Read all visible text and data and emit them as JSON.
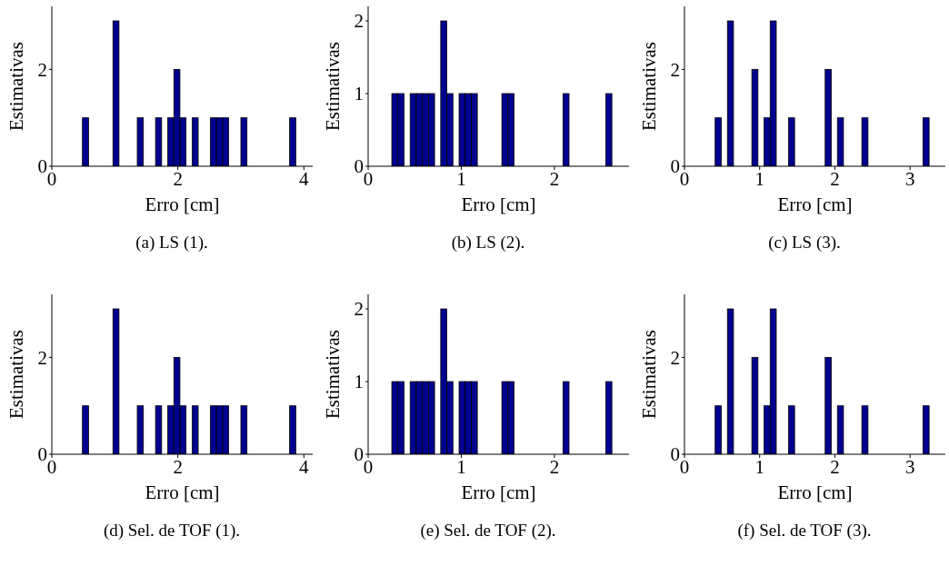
{
  "chart_data": [
    {
      "type": "histogram",
      "xlabel": "Erro [cm]",
      "ylabel": "Estimativas",
      "annotations": [
        "(a) LS (1)."
      ],
      "color": "#00008f",
      "xlim": [
        0,
        4.14
      ],
      "ylim": [
        0,
        3.3
      ],
      "xticks": [
        0,
        2,
        4
      ],
      "yticks": [
        0,
        2
      ],
      "bins": [
        0.486,
        0.583,
        0.679,
        0.776,
        0.873,
        0.97,
        1.066,
        1.163,
        1.26,
        1.356,
        1.453,
        1.55,
        1.646,
        1.743,
        1.84,
        1.937,
        2.033,
        2.13,
        2.227,
        2.323,
        2.42,
        2.517,
        2.613,
        2.71,
        2.807,
        2.904,
        3,
        3.097,
        3.194,
        3.29,
        3.387,
        3.484,
        3.58,
        3.677,
        3.774,
        3.871
      ],
      "values": [
        1,
        0,
        0,
        0,
        0,
        3,
        0,
        0,
        0,
        1,
        0,
        0,
        1,
        0,
        1,
        2,
        1,
        0,
        1,
        0,
        0,
        1,
        1,
        1,
        0,
        0,
        1,
        0,
        0,
        0,
        0,
        0,
        0,
        0,
        1
      ]
    },
    {
      "type": "histogram",
      "xlabel": "Erro [cm]",
      "ylabel": "Estimativas",
      "annotations": [
        "(b) LS (2)."
      ],
      "color": "#00008f",
      "xlim": [
        0,
        2.8
      ],
      "ylim": [
        0,
        2.2
      ],
      "xticks": [
        0,
        1,
        2
      ],
      "yticks": [
        0,
        1,
        2
      ],
      "bins": [
        0.254,
        0.32,
        0.385,
        0.451,
        0.516,
        0.582,
        0.648,
        0.713,
        0.779,
        0.844,
        0.91,
        0.976,
        1.041,
        1.107,
        1.172,
        1.238,
        1.304,
        1.369,
        1.435,
        1.5,
        1.566,
        1.632,
        1.697,
        1.763,
        1.828,
        1.894,
        1.96,
        2.025,
        2.091,
        2.156,
        2.222,
        2.288,
        2.353,
        2.419,
        2.484,
        2.55,
        2.616
      ],
      "values": [
        1,
        1,
        0,
        1,
        1,
        1,
        1,
        0,
        2,
        1,
        0,
        1,
        1,
        1,
        0,
        0,
        0,
        0,
        1,
        1,
        0,
        0,
        0,
        0,
        0,
        0,
        0,
        0,
        1,
        0,
        0,
        0,
        0,
        0,
        0,
        1
      ]
    },
    {
      "type": "histogram",
      "xlabel": "Erro [cm]",
      "ylabel": "Estimativas",
      "annotations": [
        "(c) LS (3)."
      ],
      "color": "#00008f",
      "xlim": [
        0,
        3.47
      ],
      "ylim": [
        0,
        3.3
      ],
      "xticks": [
        0,
        1,
        2,
        3
      ],
      "yticks": [
        0,
        2
      ],
      "bins": [
        0.408,
        0.489,
        0.571,
        0.652,
        0.733,
        0.815,
        0.896,
        0.977,
        1.058,
        1.14,
        1.221,
        1.302,
        1.384,
        1.465,
        1.546,
        1.628,
        1.709,
        1.79,
        1.871,
        1.953,
        2.034,
        2.115,
        2.197,
        2.278,
        2.359,
        2.441,
        2.522,
        2.603,
        2.684,
        2.766,
        2.847,
        2.928,
        3.01,
        3.091,
        3.172,
        3.254
      ],
      "values": [
        1,
        0,
        3,
        0,
        0,
        0,
        2,
        0,
        1,
        3,
        0,
        0,
        1,
        0,
        0,
        0,
        0,
        0,
        2,
        0,
        1,
        0,
        0,
        0,
        1,
        0,
        0,
        0,
        0,
        0,
        0,
        0,
        0,
        0,
        1
      ]
    },
    {
      "type": "histogram",
      "xlabel": "Erro [cm]",
      "ylabel": "Estimativas",
      "annotations": [
        "(d) Sel. de TOF (1)."
      ],
      "color": "#00008f",
      "xlim": [
        0,
        4.14
      ],
      "ylim": [
        0,
        3.3
      ],
      "xticks": [
        0,
        2,
        4
      ],
      "yticks": [
        0,
        2
      ],
      "bins": [
        0.486,
        0.583,
        0.679,
        0.776,
        0.873,
        0.97,
        1.066,
        1.163,
        1.26,
        1.356,
        1.453,
        1.55,
        1.646,
        1.743,
        1.84,
        1.937,
        2.033,
        2.13,
        2.227,
        2.323,
        2.42,
        2.517,
        2.613,
        2.71,
        2.807,
        2.904,
        3,
        3.097,
        3.194,
        3.29,
        3.387,
        3.484,
        3.58,
        3.677,
        3.774,
        3.871
      ],
      "values": [
        1,
        0,
        0,
        0,
        0,
        3,
        0,
        0,
        0,
        1,
        0,
        0,
        1,
        0,
        1,
        2,
        1,
        0,
        1,
        0,
        0,
        1,
        1,
        1,
        0,
        0,
        1,
        0,
        0,
        0,
        0,
        0,
        0,
        0,
        1
      ]
    },
    {
      "type": "histogram",
      "xlabel": "Erro [cm]",
      "ylabel": "Estimativas",
      "annotations": [
        "(e) Sel. de TOF (2)."
      ],
      "color": "#00008f",
      "xlim": [
        0,
        2.8
      ],
      "ylim": [
        0,
        2.2
      ],
      "xticks": [
        0,
        1,
        2
      ],
      "yticks": [
        0,
        1,
        2
      ],
      "bins": [
        0.254,
        0.32,
        0.385,
        0.451,
        0.516,
        0.582,
        0.648,
        0.713,
        0.779,
        0.844,
        0.91,
        0.976,
        1.041,
        1.107,
        1.172,
        1.238,
        1.304,
        1.369,
        1.435,
        1.5,
        1.566,
        1.632,
        1.697,
        1.763,
        1.828,
        1.894,
        1.96,
        2.025,
        2.091,
        2.156,
        2.222,
        2.288,
        2.353,
        2.419,
        2.484,
        2.55,
        2.616
      ],
      "values": [
        1,
        1,
        0,
        1,
        1,
        1,
        1,
        0,
        2,
        1,
        0,
        1,
        1,
        1,
        0,
        0,
        0,
        0,
        1,
        1,
        0,
        0,
        0,
        0,
        0,
        0,
        0,
        0,
        1,
        0,
        0,
        0,
        0,
        0,
        0,
        1
      ]
    },
    {
      "type": "histogram",
      "xlabel": "Erro [cm]",
      "ylabel": "Estimativas",
      "annotations": [
        "(f) Sel. de TOF (3)."
      ],
      "color": "#00008f",
      "xlim": [
        0,
        3.47
      ],
      "ylim": [
        0,
        3.3
      ],
      "xticks": [
        0,
        1,
        2,
        3
      ],
      "yticks": [
        0,
        2
      ],
      "bins": [
        0.408,
        0.489,
        0.571,
        0.652,
        0.733,
        0.815,
        0.896,
        0.977,
        1.058,
        1.14,
        1.221,
        1.302,
        1.384,
        1.465,
        1.546,
        1.628,
        1.709,
        1.79,
        1.871,
        1.953,
        2.034,
        2.115,
        2.197,
        2.278,
        2.359,
        2.441,
        2.522,
        2.603,
        2.684,
        2.766,
        2.847,
        2.928,
        3.01,
        3.091,
        3.172,
        3.254
      ],
      "values": [
        1,
        0,
        3,
        0,
        0,
        0,
        2,
        0,
        1,
        3,
        0,
        0,
        1,
        0,
        0,
        0,
        0,
        0,
        2,
        0,
        1,
        0,
        0,
        0,
        1,
        0,
        0,
        0,
        0,
        0,
        0,
        0,
        0,
        0,
        1
      ]
    }
  ]
}
